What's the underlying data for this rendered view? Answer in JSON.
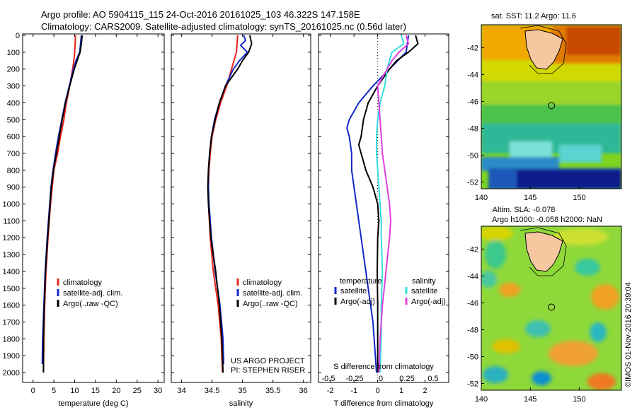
{
  "header": {
    "line1": "Argo profile: AO 5904115_115 24-Oct-2016 20161025_103 46.322S 147.158E",
    "line2": "Climatology: CARS2009. Satellite-adjusted climatology: synTS_20161025.nc (0.56d later)"
  },
  "credit": "©IMOS 01-Nov-2016 20:39:04",
  "depth_ticks": [
    0,
    100,
    200,
    300,
    400,
    500,
    600,
    700,
    800,
    900,
    1000,
    1100,
    1200,
    1300,
    1400,
    1500,
    1600,
    1700,
    1800,
    1900,
    2000
  ],
  "colors": {
    "climatology": "#e8231c",
    "satellite": "#1428c8",
    "argo": "#000000",
    "sal_satellite": "#35e0e0",
    "sal_argo": "#e040e0"
  },
  "chart_data": [
    {
      "type": "line",
      "panel": "temperature",
      "xlabel": "temperature (deg C)",
      "xticks": [
        0,
        5,
        10,
        15,
        20,
        25,
        30
      ],
      "xlim": [
        -2.5,
        31.5
      ],
      "ylim": [
        2050,
        0
      ],
      "legend": [
        "climatology",
        "satellite-adj. clim.",
        "Argo(..raw -QC)"
      ],
      "series": [
        {
          "name": "climatology",
          "y": [
            0,
            50,
            100,
            150,
            200,
            300,
            400,
            500,
            600,
            700,
            800,
            900,
            1000,
            1200,
            1400,
            1600,
            1800,
            2000
          ],
          "x": [
            10.2,
            10.1,
            10.0,
            9.8,
            9.5,
            8.8,
            8.0,
            7.4,
            6.6,
            5.9,
            5.0,
            4.6,
            4.2,
            3.6,
            3.1,
            2.8,
            2.6,
            2.5
          ]
        },
        {
          "name": "satellite-adj. clim.",
          "y": [
            0,
            50,
            100,
            150,
            200,
            300,
            400,
            500,
            600,
            700,
            800,
            900,
            1000,
            1200,
            1400,
            1600,
            1800,
            1950
          ],
          "x": [
            11.6,
            11.4,
            11.2,
            10.3,
            9.7,
            8.7,
            7.7,
            6.9,
            6.1,
            5.4,
            4.8,
            4.3,
            4.0,
            3.4,
            2.9,
            2.6,
            2.3,
            2.2
          ]
        },
        {
          "name": "Argo(..raw -QC)",
          "y": [
            0,
            50,
            100,
            150,
            200,
            300,
            400,
            500,
            600,
            700,
            800,
            900,
            1000,
            1200,
            1400,
            1600,
            1800,
            2000
          ],
          "x": [
            11.8,
            11.6,
            11.3,
            10.6,
            9.9,
            8.8,
            7.8,
            7.0,
            6.3,
            5.6,
            4.9,
            4.4,
            4.1,
            3.5,
            3.0,
            2.7,
            2.5,
            2.5
          ]
        }
      ]
    },
    {
      "type": "line",
      "panel": "salinity",
      "xlabel": "salinity",
      "xticks": [
        34,
        34.5,
        35,
        35.5,
        36
      ],
      "xtick_labels": [
        "34",
        "34.5",
        "35",
        "35.5",
        "36"
      ],
      "xlim": [
        33.83,
        36.12
      ],
      "ylim": [
        2050,
        0
      ],
      "legend": [
        "climatology",
        "satellite-adj. clim.",
        "Argo(..raw -QC)"
      ],
      "annotation": [
        "US ARGO PROJECT",
        "PI: STEPHEN RISER"
      ],
      "series": [
        {
          "name": "climatology",
          "y": [
            0,
            50,
            100,
            150,
            200,
            300,
            400,
            500,
            600,
            700,
            800,
            900,
            1000,
            1200,
            1400,
            1600,
            1800,
            2000
          ],
          "x": [
            34.92,
            34.91,
            34.9,
            34.86,
            34.82,
            34.74,
            34.64,
            34.56,
            34.5,
            34.47,
            34.45,
            34.44,
            34.44,
            34.47,
            34.52,
            34.6,
            34.65,
            34.67
          ]
        },
        {
          "name": "satellite-adj. clim.",
          "y": [
            0,
            30,
            60,
            100,
            150,
            200,
            300,
            400,
            500,
            600,
            700,
            800,
            900,
            1000,
            1200,
            1400,
            1600,
            1800,
            1950
          ],
          "x": [
            35.02,
            35.05,
            34.97,
            35.08,
            34.95,
            34.85,
            34.72,
            34.62,
            34.54,
            34.49,
            34.46,
            34.44,
            34.44,
            34.45,
            34.49,
            34.55,
            34.63,
            34.68,
            34.69
          ]
        },
        {
          "name": "Argo(..raw -QC)",
          "y": [
            0,
            50,
            100,
            150,
            200,
            250,
            300,
            400,
            500,
            600,
            700,
            800,
            900,
            1000,
            1200,
            1400,
            1600,
            1800,
            2000
          ],
          "x": [
            35.12,
            35.15,
            35.1,
            35.0,
            34.92,
            34.82,
            34.72,
            34.62,
            34.55,
            34.49,
            34.46,
            34.44,
            34.43,
            34.44,
            34.48,
            34.56,
            34.62,
            34.66,
            34.68
          ]
        }
      ]
    },
    {
      "type": "line",
      "panel": "difference",
      "xlabel": "T difference from climatology",
      "xlabel_top": "S difference from climatology",
      "xticks": [
        -2,
        -1,
        0,
        1,
        2
      ],
      "xtick_labels_top": [
        "-0.5",
        "-0.25",
        "0",
        "0.25",
        "0.5"
      ],
      "xlim": [
        -2.5,
        3.0
      ],
      "ylim": [
        2050,
        0
      ],
      "legend_temperature_title": "temperature",
      "legend_salinity_title": "salinity",
      "legend": [
        "satellite",
        "Argo(-adj)",
        "satellite",
        "Argo(-adj)"
      ],
      "series": [
        {
          "name": "satellite",
          "y": [
            0,
            100,
            200,
            300,
            400,
            500,
            550,
            600,
            700,
            800,
            900,
            1000,
            1100,
            1200,
            1300,
            1400,
            1500,
            1600,
            1700,
            1800,
            1900,
            2000
          ],
          "x": [
            1.3,
            1.2,
            0.5,
            -0.2,
            -0.8,
            -1.2,
            -1.3,
            -1.2,
            -1.1,
            -1.1,
            -1.0,
            -0.9,
            -0.8,
            -0.7,
            -0.6,
            -0.5,
            -0.4,
            -0.3,
            -0.2,
            -0.15,
            -0.1,
            -0.05
          ]
        },
        {
          "name": "Argo(-adj)",
          "y": [
            0,
            50,
            100,
            150,
            200,
            300,
            400,
            500,
            600,
            650,
            700,
            800,
            900,
            1000,
            1100,
            1200,
            1400,
            1600,
            1800,
            2000
          ],
          "x": [
            1.6,
            1.7,
            1.3,
            0.8,
            0.5,
            0.0,
            -0.4,
            -0.6,
            -0.7,
            -0.8,
            -0.7,
            -0.5,
            -0.2,
            0.0,
            0.05,
            0.0,
            -0.02,
            0.0,
            0.0,
            0.0
          ]
        },
        {
          "name": "satellite",
          "y": [
            0,
            50,
            100,
            150,
            200,
            300,
            400,
            500,
            600,
            700,
            800,
            900,
            1000,
            1100,
            1200,
            1400,
            1600,
            1800,
            2000
          ],
          "x": [
            1.0,
            1.1,
            0.6,
            0.5,
            0.4,
            0.3,
            0.1,
            0.0,
            -0.05,
            -0.05,
            0.0,
            0.05,
            0.1,
            0.15,
            0.15,
            0.2,
            0.15,
            0.15,
            0.1
          ]
        },
        {
          "name": "Argo(-adj)",
          "y": [
            0,
            50,
            100,
            150,
            200,
            250,
            300,
            400,
            500,
            600,
            700,
            800,
            900,
            1000,
            1100,
            1200,
            1400,
            1600,
            1800,
            2000
          ],
          "x": [
            1.2,
            1.3,
            0.9,
            0.6,
            0.4,
            0.2,
            0.0,
            0.05,
            0.1,
            0.15,
            0.2,
            0.3,
            0.4,
            0.5,
            0.55,
            0.5,
            0.35,
            0.2,
            0.1,
            0.05
          ]
        }
      ]
    },
    {
      "type": "heatmap",
      "panel": "sst_map",
      "title": "sat. SST: 11.2 Argo: 11.6",
      "xticks": [
        140,
        145,
        150
      ],
      "yticks": [
        -42,
        -44,
        -46,
        -48,
        -50,
        -52
      ],
      "xlim": [
        140,
        154.3
      ],
      "ylim": [
        -52.5,
        -40.3
      ],
      "argo_position": {
        "lon": 147.158,
        "lat": -46.322
      }
    },
    {
      "type": "heatmap",
      "panel": "sla_map",
      "title": "Altim. SLA: -0.078",
      "subtitle": "Argo h1000: -0.058 h2000: NaN",
      "xticks": [
        140,
        145,
        150
      ],
      "yticks": [
        -42,
        -44,
        -46,
        -48,
        -50,
        -52
      ],
      "xlim": [
        140,
        154.3
      ],
      "ylim": [
        -52.5,
        -40.3
      ],
      "argo_position": {
        "lon": 147.158,
        "lat": -46.322
      }
    }
  ]
}
